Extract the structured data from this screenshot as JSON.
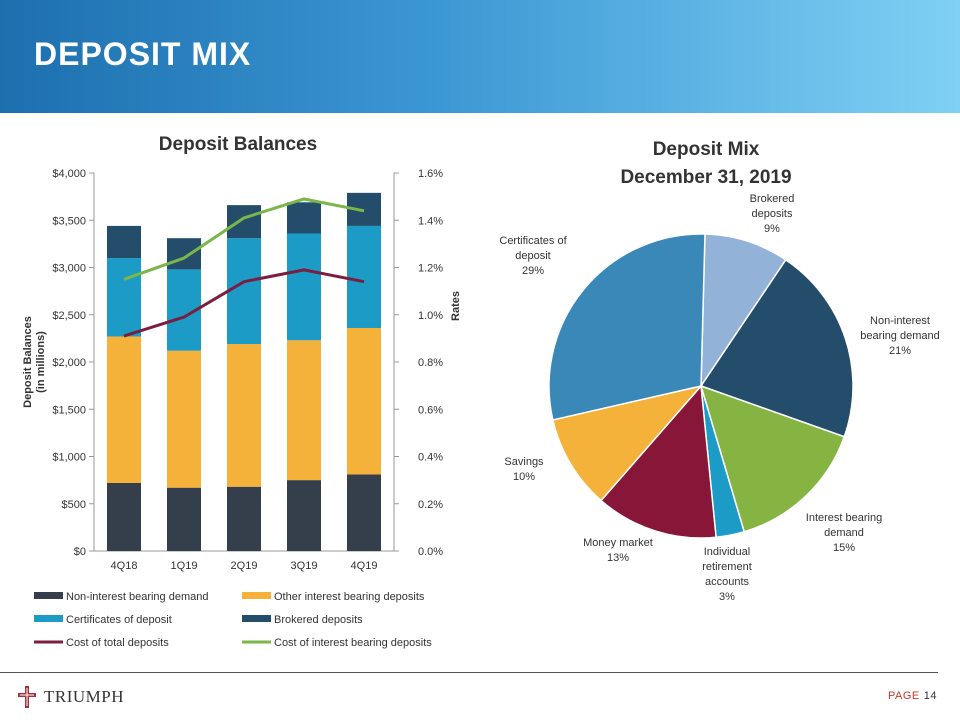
{
  "page": {
    "title": "DEPOSIT MIX",
    "page_label": "PAGE",
    "page_number": "14",
    "logo_text": "TRIUMPH"
  },
  "colors": {
    "non_interest": "#343f4b",
    "other_interest": "#f5b23a",
    "certificates": "#1c9bc6",
    "brokered": "#234d6b",
    "cost_total": "#7b1d3e",
    "cost_interest": "#7ab648",
    "pie_brokered": "#93b2d8",
    "pie_non_interest": "#234d6b",
    "pie_interest_bearing": "#85b443",
    "pie_ira": "#1c9bc6",
    "pie_money_market": "#871638",
    "pie_savings": "#f5b23a",
    "pie_certificates": "#3a88b8"
  },
  "chart_data": [
    {
      "type": "bar",
      "title": "Deposit Balances",
      "ylabel": "Deposit Balances\n(in millions)",
      "ylabel_lines": [
        "Deposit Balances",
        "(in millions)"
      ],
      "y2label": "Rates",
      "categories": [
        "4Q18",
        "1Q19",
        "2Q19",
        "3Q19",
        "4Q19"
      ],
      "ylim": [
        0,
        4000
      ],
      "y_ticks": [
        "$0",
        "$500",
        "$1,000",
        "$1,500",
        "$2,000",
        "$2,500",
        "$3,000",
        "$3,500",
        "$4,000"
      ],
      "y2lim": [
        0,
        1.6
      ],
      "y2_ticks": [
        "0.0%",
        "0.2%",
        "0.4%",
        "0.6%",
        "0.8%",
        "1.0%",
        "1.2%",
        "1.4%",
        "1.6%"
      ],
      "stacked": true,
      "grid": false,
      "legend_position": "bottom",
      "series": [
        {
          "name": "Non-interest bearing demand",
          "type": "bar",
          "values": [
            720,
            670,
            680,
            750,
            810
          ]
        },
        {
          "name": "Other interest bearing deposits",
          "type": "bar",
          "values": [
            1550,
            1450,
            1510,
            1480,
            1550
          ]
        },
        {
          "name": "Certificates of deposit",
          "type": "bar",
          "values": [
            830,
            860,
            1120,
            1130,
            1080
          ]
        },
        {
          "name": "Brokered deposits",
          "type": "bar",
          "values": [
            340,
            330,
            350,
            330,
            350
          ]
        },
        {
          "name": "Cost of total deposits",
          "type": "line",
          "axis": "right",
          "values": [
            0.91,
            0.99,
            1.14,
            1.19,
            1.14
          ]
        },
        {
          "name": "Cost of interest bearing deposits",
          "type": "line",
          "axis": "right",
          "values": [
            1.15,
            1.24,
            1.41,
            1.49,
            1.44
          ]
        }
      ]
    },
    {
      "type": "pie",
      "title": "Deposit Mix",
      "subtitle": "December 31, 2019",
      "slices": [
        {
          "label": "Brokered\ndeposits",
          "label_lines": [
            "Brokered",
            "deposits"
          ],
          "value": 9,
          "value_label": "9%"
        },
        {
          "label": "Non-interest\nbearing demand",
          "label_lines": [
            "Non-interest",
            "bearing demand"
          ],
          "value": 21,
          "value_label": "21%"
        },
        {
          "label": "Interest bearing\ndemand",
          "label_lines": [
            "Interest bearing",
            "demand"
          ],
          "value": 15,
          "value_label": "15%"
        },
        {
          "label": "Individual\nretirement\naccounts",
          "label_lines": [
            "Individual",
            "retirement",
            "accounts"
          ],
          "value": 3,
          "value_label": "3%"
        },
        {
          "label": "Money market",
          "label_lines": [
            "Money market"
          ],
          "value": 13,
          "value_label": "13%"
        },
        {
          "label": "Savings",
          "label_lines": [
            "Savings"
          ],
          "value": 10,
          "value_label": "10%"
        },
        {
          "label": "Certificates of\ndeposit",
          "label_lines": [
            "Certificates of",
            "deposit"
          ],
          "value": 29,
          "value_label": "29%"
        }
      ]
    }
  ]
}
